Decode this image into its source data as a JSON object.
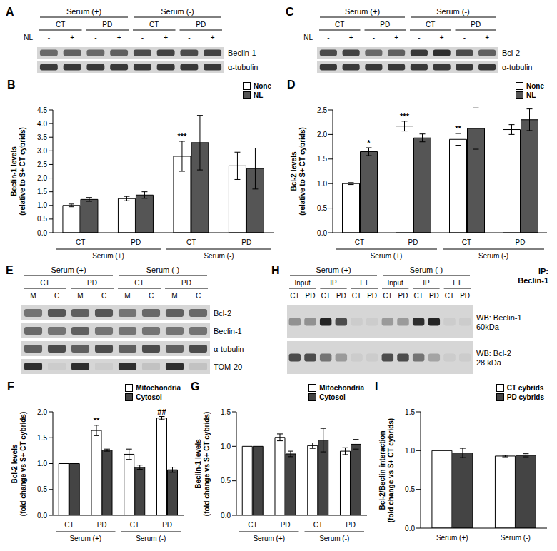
{
  "chart_data": [
    {
      "type": "bar",
      "title": "B",
      "y_label": "Beclin-1 levels\n(relative to S+ CT cybrids)",
      "categories": [
        "CT",
        "PD",
        "CT",
        "PD"
      ],
      "category_groups": [
        "Serum (+)",
        "Serum (+)",
        "Serum (-)",
        "Serum (-)"
      ],
      "ylim": [
        0,
        4.5
      ],
      "yticks": [
        {
          "value": 0,
          "label": "0.0"
        },
        0.5,
        {
          "value": 1,
          "label": "1.0"
        },
        1.5,
        {
          "value": 2,
          "label": "2.0"
        },
        2.5,
        {
          "value": 3,
          "label": "3.0"
        },
        3.5,
        {
          "value": 4,
          "label": "4.0"
        },
        4.5
      ],
      "legend": "upper right",
      "series": [
        {
          "name": "None",
          "color": "#ffffff",
          "values": [
            1.0,
            1.25,
            2.8,
            2.45
          ],
          "errors": [
            0.05,
            0.08,
            0.55,
            0.5
          ],
          "annotations": [
            null,
            null,
            "***",
            null
          ]
        },
        {
          "name": "NL",
          "color": "#555555",
          "values": [
            1.22,
            1.38,
            3.3,
            2.35
          ],
          "errors": [
            0.07,
            0.12,
            1.0,
            0.75
          ],
          "annotations": [
            null,
            null,
            null,
            null
          ]
        }
      ]
    },
    {
      "type": "bar",
      "title": "D",
      "y_label": "Bcl-2 levels\n(relative to S+ CT cybrids)",
      "categories": [
        "CT",
        "PD",
        "CT",
        "PD"
      ],
      "category_groups": [
        "Serum (+)",
        "Serum (+)",
        "Serum (-)",
        "Serum (-)"
      ],
      "ylim": [
        0,
        2.5
      ],
      "yticks": [
        {
          "value": 0,
          "label": "0.0"
        },
        0.5,
        {
          "value": 1,
          "label": "1.0"
        },
        1.5,
        {
          "value": 2,
          "label": "2.0"
        },
        2.5
      ],
      "legend": "upper right",
      "series": [
        {
          "name": "None",
          "color": "#ffffff",
          "values": [
            1.0,
            2.17,
            1.9,
            2.1
          ],
          "errors": [
            0.02,
            0.1,
            0.12,
            0.1
          ],
          "annotations": [
            null,
            "***",
            "**",
            null
          ]
        },
        {
          "name": "NL",
          "color": "#555555",
          "values": [
            1.65,
            1.93,
            2.12,
            2.3
          ],
          "errors": [
            0.08,
            0.08,
            0.42,
            0.22
          ],
          "annotations": [
            "*",
            null,
            null,
            null
          ]
        }
      ]
    },
    {
      "type": "bar",
      "title": "F",
      "y_label": "Bcl-2 levels\n(fold change vs S+ CT cybrids)",
      "categories": [
        "CT",
        "PD",
        "CT",
        "PD"
      ],
      "category_groups": [
        "Serum (+)",
        "Serum (+)",
        "Serum (-)",
        "Serum (-)"
      ],
      "ylim": [
        0,
        2
      ],
      "yticks": [
        {
          "value": 0,
          "label": "0.0"
        },
        0.5,
        {
          "value": 1,
          "label": "1.0"
        },
        1.5,
        {
          "value": 2,
          "label": "2.0"
        }
      ],
      "legend": "upper right",
      "series": [
        {
          "name": "Mitochondria",
          "color": "#ffffff",
          "values": [
            1.0,
            1.64,
            1.18,
            1.88
          ],
          "errors": [
            0,
            0.1,
            0.1,
            0.03
          ],
          "annotations": [
            null,
            "**",
            null,
            "##"
          ]
        },
        {
          "name": "Cytosol",
          "color": "#444444",
          "values": [
            1.0,
            1.26,
            0.93,
            0.88
          ],
          "errors": [
            0,
            0.02,
            0.04,
            0.05
          ],
          "annotations": [
            null,
            null,
            null,
            null
          ]
        }
      ]
    },
    {
      "type": "bar",
      "title": "G",
      "y_label": "Beclin-1 levels\n(fold change vs S+ CT cybrids)",
      "categories": [
        "CT",
        "PD",
        "CT",
        "PD"
      ],
      "category_groups": [
        "Serum (+)",
        "Serum (+)",
        "Serum (-)",
        "Serum (-)"
      ],
      "ylim": [
        0,
        1.5
      ],
      "yticks": [
        {
          "value": 0,
          "label": "0.0"
        },
        0.5,
        {
          "value": 1,
          "label": "1.0"
        },
        1.5
      ],
      "legend": "upper right",
      "series": [
        {
          "name": "Mitochondria",
          "color": "#ffffff",
          "values": [
            1.0,
            1.13,
            1.01,
            0.93
          ],
          "errors": [
            0,
            0.05,
            0.04,
            0.05
          ],
          "annotations": [
            null,
            null,
            null,
            null
          ]
        },
        {
          "name": "Cytosol",
          "color": "#444444",
          "values": [
            1.0,
            0.89,
            1.09,
            1.03
          ],
          "errors": [
            0,
            0.04,
            0.17,
            0.07
          ],
          "annotations": [
            null,
            null,
            null,
            null
          ]
        }
      ]
    },
    {
      "type": "bar",
      "title": "I",
      "y_label": "Bcl-2/Beclin interaction\n(fold change vs S+ CT cybrids)",
      "categories": [
        "Serum (+)",
        "Serum (-)"
      ],
      "ylim": [
        0,
        1.5
      ],
      "yticks": [
        {
          "value": 0,
          "label": "0.0"
        },
        0.5,
        {
          "value": 1,
          "label": "1.0"
        },
        1.5
      ],
      "legend": "upper right",
      "series": [
        {
          "name": "CT cybrids",
          "color": "#ffffff",
          "values": [
            1.0,
            0.93
          ],
          "errors": [
            0,
            0.01
          ],
          "annotations": [
            null,
            null
          ]
        },
        {
          "name": "PD cybrids",
          "color": "#444444",
          "values": [
            0.97,
            0.94
          ],
          "errors": [
            0.06,
            0.02
          ],
          "annotations": [
            null,
            null
          ]
        }
      ]
    }
  ],
  "blots": [
    {
      "title": "A",
      "groups": [
        "Serum (+)",
        "Serum (-)"
      ],
      "subgroups": [
        "CT",
        "PD",
        "CT",
        "PD"
      ],
      "lane_label": "NL",
      "lanes": [
        "-",
        "+",
        "-",
        "+",
        "-",
        "+",
        "-",
        "+"
      ],
      "rows": [
        {
          "label": [
            "Beclin-1"
          ],
          "bands": [
            0.55,
            0.6,
            0.55,
            0.6,
            0.7,
            0.75,
            0.7,
            0.75
          ]
        },
        {
          "label": [
            "α-tubulin"
          ],
          "bands": [
            0.8,
            0.8,
            0.8,
            0.8,
            0.8,
            0.8,
            0.8,
            0.8
          ]
        }
      ]
    },
    {
      "title": "C",
      "groups": [
        "Serum (+)",
        "Serum (-)"
      ],
      "subgroups": [
        "CT",
        "PD",
        "CT",
        "PD"
      ],
      "lane_label": "NL",
      "lanes": [
        "-",
        "+",
        "-",
        "+",
        "-",
        "+",
        "-",
        "+"
      ],
      "rows": [
        {
          "label": [
            "Bcl-2"
          ],
          "bands": [
            0.7,
            0.75,
            0.55,
            0.6,
            0.8,
            0.85,
            0.7,
            0.6
          ]
        },
        {
          "label": [
            "α-tubulin"
          ],
          "bands": [
            0.8,
            0.8,
            0.8,
            0.8,
            0.8,
            0.8,
            0.8,
            0.8
          ]
        }
      ]
    },
    {
      "title": "E",
      "groups": [
        "Serum (+)",
        "Serum (-)"
      ],
      "subgroups": [
        "CT",
        "PD",
        "CT",
        "PD"
      ],
      "lanes": [
        "M",
        "C",
        "M",
        "C",
        "M",
        "C",
        "M",
        "C"
      ],
      "rows": [
        {
          "label": [
            "Bcl-2"
          ],
          "bands": [
            0.5,
            0.65,
            0.6,
            0.65,
            0.5,
            0.55,
            0.6,
            0.55
          ]
        },
        {
          "label": [
            "Beclin-1"
          ],
          "bands": [
            0.55,
            0.5,
            0.6,
            0.5,
            0.5,
            0.5,
            0.5,
            0.5
          ]
        },
        {
          "label": [
            "α-tubulin"
          ],
          "bands": [
            0.6,
            0.7,
            0.6,
            0.7,
            0.6,
            0.7,
            0.6,
            0.7
          ]
        },
        {
          "label": [
            "TOM-20"
          ],
          "bands": [
            0.85,
            0.05,
            0.85,
            0.05,
            0.85,
            0.1,
            0.85,
            0.1
          ]
        }
      ]
    },
    {
      "title": "H",
      "groups": [
        "Serum (+)",
        "Serum (-)"
      ],
      "subgroups": [
        "Input",
        "IP",
        "FT",
        "Input",
        "IP",
        "FT"
      ],
      "lanes": [
        "CT",
        "PD",
        "CT",
        "PD",
        "CT",
        "PD",
        "CT",
        "PD",
        "CT",
        "PD",
        "CT",
        "PD"
      ],
      "side_title": [
        "IP:",
        "Beclin-1"
      ],
      "rows": [
        {
          "label": [
            "WB: Beclin-1",
            "60kDa"
          ],
          "bands": [
            0.35,
            0.35,
            0.9,
            0.7,
            0.05,
            0.05,
            0.3,
            0.3,
            0.85,
            0.9,
            0.05,
            0.05
          ]
        },
        {
          "label": [
            "WB: Bcl-2",
            "28 kDa"
          ],
          "bands": [
            0.7,
            0.7,
            0.5,
            0.3,
            0.05,
            0.05,
            0.7,
            0.7,
            0.5,
            0.25,
            0.05,
            0.05
          ]
        }
      ]
    }
  ]
}
